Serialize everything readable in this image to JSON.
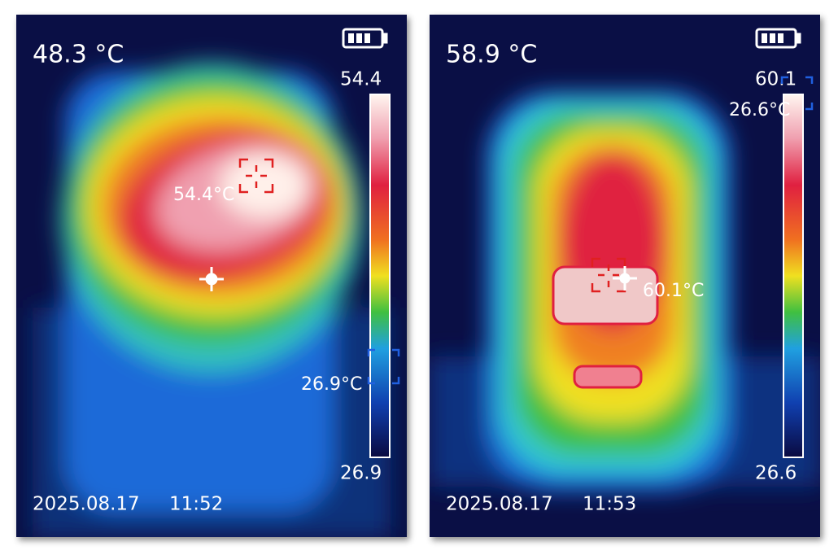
{
  "panels": [
    {
      "temperature": "48.3 °C",
      "scale_max": "54.4",
      "scale_min": "26.9",
      "max_label": "54.4°C",
      "min_label": "26.9°C",
      "date": "2025.08.17",
      "time": "11:52"
    },
    {
      "temperature": "58.9 °C",
      "scale_max": "60.1",
      "scale_min": "26.6",
      "max_label": "60.1°C",
      "min_label": "26.6°C",
      "date": "2025.08.17",
      "time": "11:53"
    }
  ]
}
